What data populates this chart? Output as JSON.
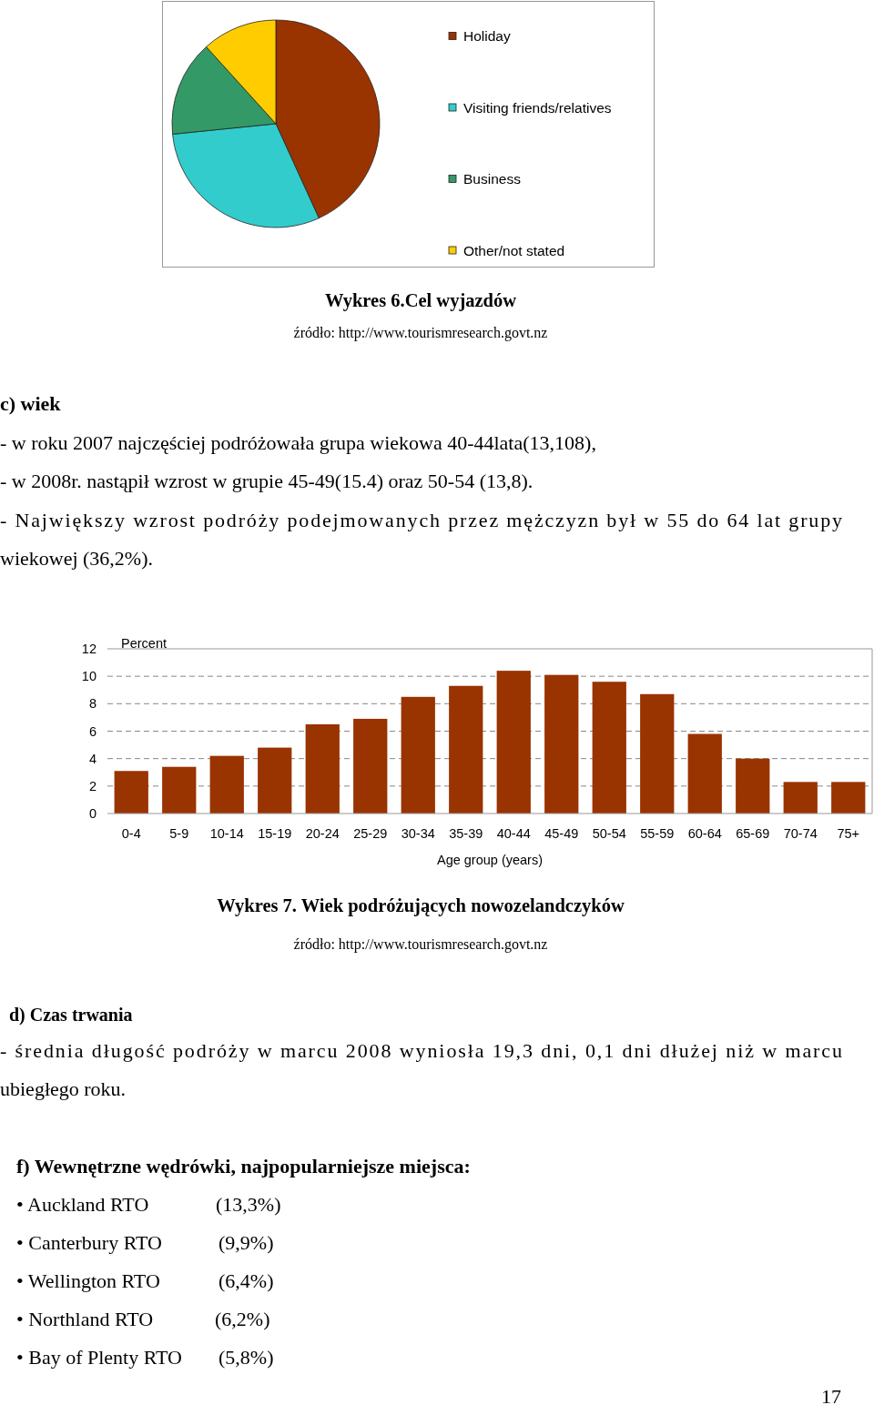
{
  "chart_data": [
    {
      "type": "pie",
      "title": "Wykres 6.Cel wyjazdów",
      "subtitle": "źródło: http://www.tourismresearch.govt.nz",
      "categories": [
        "Holiday",
        "Visiting friends/relatives",
        "Business",
        "Other/not stated"
      ],
      "values": [
        43.2,
        30.2,
        14.9,
        11.7
      ],
      "colors": [
        "#993300",
        "#33cccc",
        "#339966",
        "#ffcc00"
      ],
      "legend": "right"
    },
    {
      "type": "bar",
      "title": "Wykres 7. Wiek podróżujących nowozelandczyków",
      "subtitle": "źródło: http://www.tourismresearch.govt.nz",
      "xlabel": "Age group (years)",
      "ylabel": "Percent",
      "categories": [
        "0-4",
        "5-9",
        "10-14",
        "15-19",
        "20-24",
        "25-29",
        "30-34",
        "35-39",
        "40-44",
        "45-49",
        "50-54",
        "55-59",
        "60-64",
        "65-69",
        "70-74",
        "75+"
      ],
      "series": [
        {
          "color": "#993300",
          "values": [
            3.1,
            3.4,
            4.2,
            4.8,
            6.5,
            6.9,
            8.5,
            9.3,
            10.4,
            10.1,
            9.6,
            8.7,
            5.8,
            4.0,
            2.3,
            2.3
          ]
        }
      ],
      "ylim": [
        0,
        12
      ],
      "yticks": [
        0,
        2,
        4,
        6,
        8,
        10,
        12
      ],
      "grid": "y",
      "annotations": [
        "c) wiek",
        "- w roku 2007 najczęściej podróżowała grupa wiekowa 40-44lata(13,108),",
        "- w 2008r. nastąpił wzrost w grupie 45-49(15.4) oraz 50-54 (13,8).",
        "- Największy wzrost  podróży podejmowanych przez mężczyzn był w 55 do 64 lat grupy",
        "wiekowej (36,2%).",
        "d) Czas trwania",
        "- średnia długość podróży w marcu 2008 wyniosła 19,3 dni, 0,1 dni dłużej niż w marcu",
        "ubiegłego roku.",
        "f) Wewnętrzne wędrówki, najpopularniejsze miejsca:",
        "• Auckland RTO",
        "(13,3%)",
        "• Canterbury RTO",
        "(9,9%)",
        "• Wellington RTO",
        "(6,4%)",
        "• Northland RTO",
        "(6,2%)",
        "• Bay of Plenty RTO",
        "(5,8%)",
        "17"
      ]
    }
  ]
}
